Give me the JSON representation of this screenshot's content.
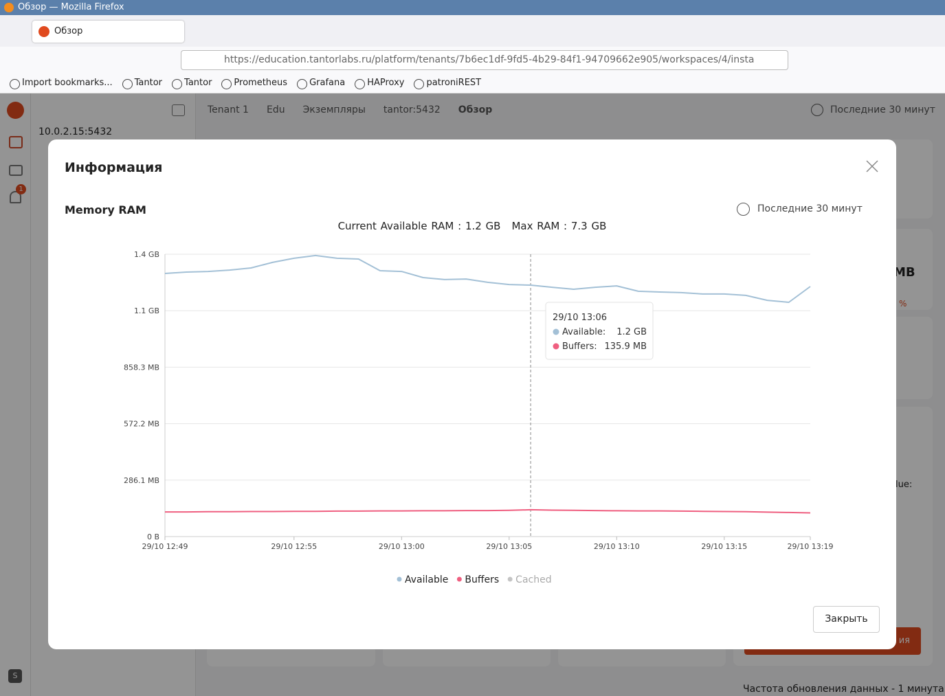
{
  "window": {
    "title": "Обзор — Mozilla Firefox"
  },
  "tab": {
    "title": "Обзор"
  },
  "url": "https://education.tantorlabs.ru/platform/tenants/7b6ec1df-9fd5-4b29-84f1-94709662e905/workspaces/4/insta",
  "bookmarks": [
    "Import bookmarks...",
    "Tantor",
    "Tantor",
    "Prometheus",
    "Grafana",
    "HAProxy",
    "patroniREST"
  ],
  "sidebar": {
    "host": "10.0.2.15:5432",
    "badge": "1",
    "avatar": "S"
  },
  "breadcrumbs": [
    "Tenant 1",
    "Edu",
    "Экземпляры",
    "tantor:5432",
    "Обзор"
  ],
  "period": "Последние 30 минут",
  "background_fragments": {
    "unit": "MB",
    "percent": "%",
    "value": "lue:",
    "button": "ия"
  },
  "footer": "Частота обновления данных - 1 минута",
  "modal": {
    "title": "Информация",
    "period": "Последние 30 минут",
    "close": "Закрыть"
  },
  "chart_data": {
    "type": "line",
    "title": "Memory RAM",
    "subtitle": [
      "Current Available RAM : 1.2 GB",
      "Max RAM : 7.3 GB"
    ],
    "x": [
      769,
      770,
      771,
      772,
      773,
      774,
      775,
      776,
      777,
      778,
      779,
      780,
      781,
      782,
      783,
      784,
      785,
      786,
      787,
      788,
      789,
      790,
      791,
      792,
      793,
      794,
      795,
      796,
      797,
      798,
      799
    ],
    "xlim": [
      769,
      799
    ],
    "xticks": [
      {
        "value": 769,
        "label": "29/10 12:49"
      },
      {
        "value": 775,
        "label": "29/10 12:55"
      },
      {
        "value": 780,
        "label": "29/10 13:00"
      },
      {
        "value": 785,
        "label": "29/10 13:05"
      },
      {
        "value": 790,
        "label": "29/10 13:10"
      },
      {
        "value": 795,
        "label": "29/10 13:15"
      },
      {
        "value": 799,
        "label": "29/10 13:19"
      }
    ],
    "ylim": [
      0,
      1430.5
    ],
    "yticks": [
      {
        "value": 0,
        "label": "0 B"
      },
      {
        "value": 286.1,
        "label": "286.1 MB"
      },
      {
        "value": 572.2,
        "label": "572.2 MB"
      },
      {
        "value": 858.3,
        "label": "858.3 MB"
      },
      {
        "value": 1144.4,
        "label": "1.1 GB"
      },
      {
        "value": 1430.5,
        "label": "1.4 GB"
      }
    ],
    "grid": true,
    "series": [
      {
        "name": "Available",
        "color": "#a3c0d6",
        "values": [
          1333,
          1340,
          1343,
          1350,
          1361,
          1389,
          1410,
          1424,
          1410,
          1406,
          1347,
          1343,
          1312,
          1302,
          1305,
          1288,
          1277,
          1274,
          1263,
          1253,
          1263,
          1270,
          1243,
          1239,
          1236,
          1229,
          1229,
          1222,
          1197,
          1187,
          1267
        ]
      },
      {
        "name": "Buffers",
        "color": "#ef5f80",
        "values": [
          125,
          125,
          126,
          126,
          127,
          127,
          128,
          128,
          129,
          129,
          130,
          130,
          131,
          131,
          132,
          132,
          133,
          136,
          134,
          133,
          132,
          131,
          130,
          130,
          129,
          128,
          127,
          126,
          124,
          122,
          120
        ]
      },
      {
        "name": "Cached",
        "color": "#c4c4c4",
        "hidden": true,
        "values": [
          null,
          null,
          null,
          null,
          null,
          null,
          null,
          null,
          null,
          null,
          null,
          null,
          null,
          null,
          null,
          null,
          null,
          null,
          null,
          null,
          null,
          null,
          null,
          null,
          null,
          null,
          null,
          null,
          null,
          null,
          null
        ]
      }
    ],
    "tooltip": {
      "title": "29/10 13:06",
      "items": [
        {
          "name": "Available:",
          "value": "1.2 GB"
        },
        {
          "name": "Buffers:",
          "value": "135.9 MB"
        }
      ]
    }
  }
}
